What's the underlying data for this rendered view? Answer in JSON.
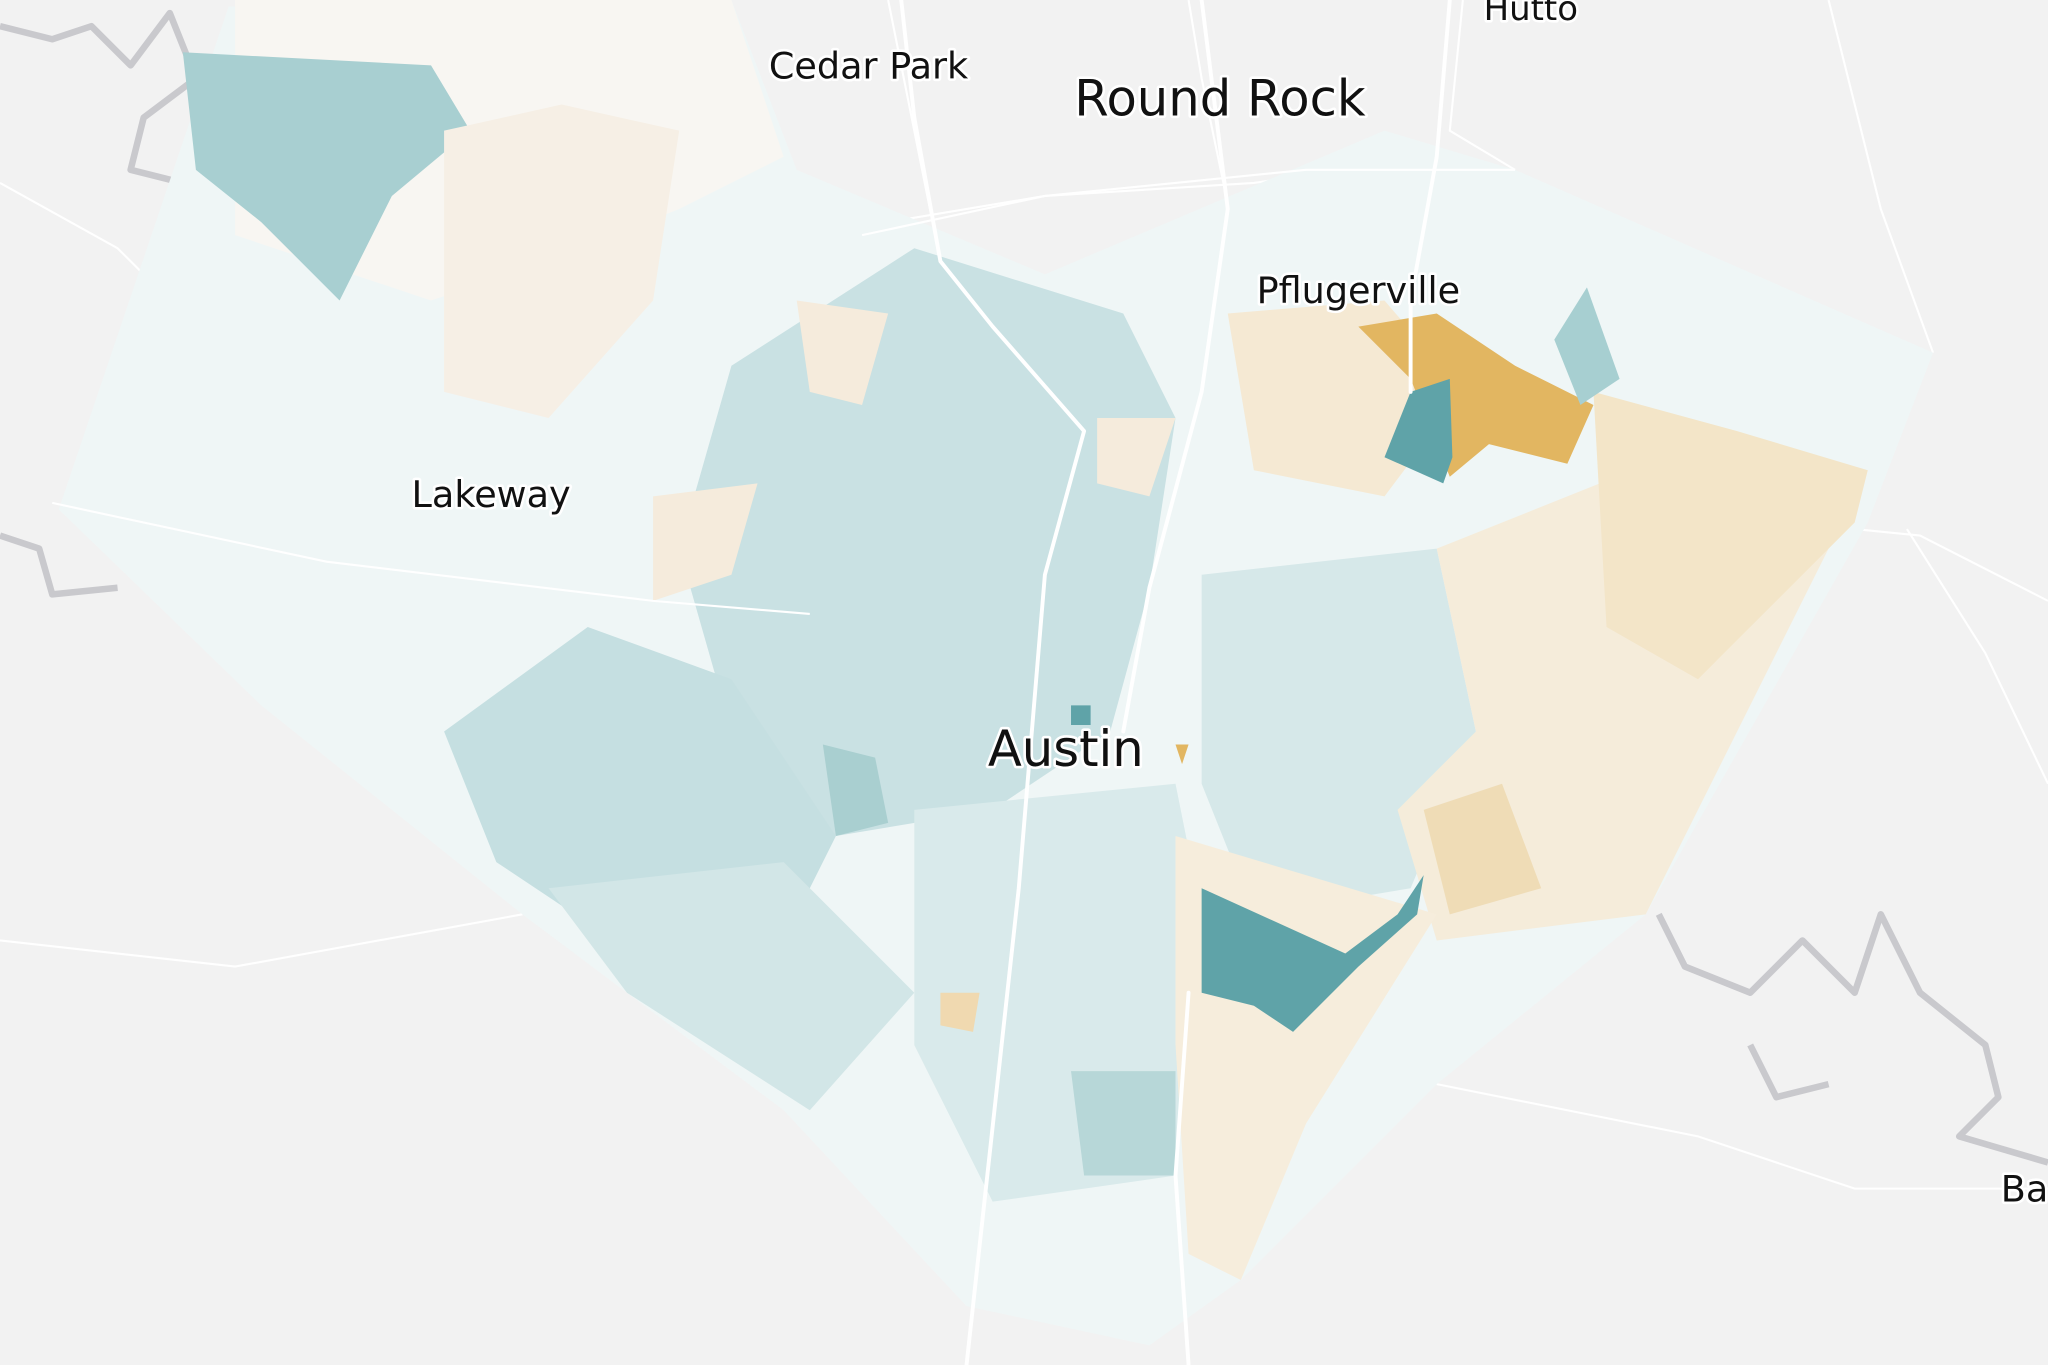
{
  "places": [
    "Hutto",
    "Cedar Park",
    "Round Rock",
    "Pflugerville",
    "Lakeway",
    "Austin",
    "Ba"
  ]
}
